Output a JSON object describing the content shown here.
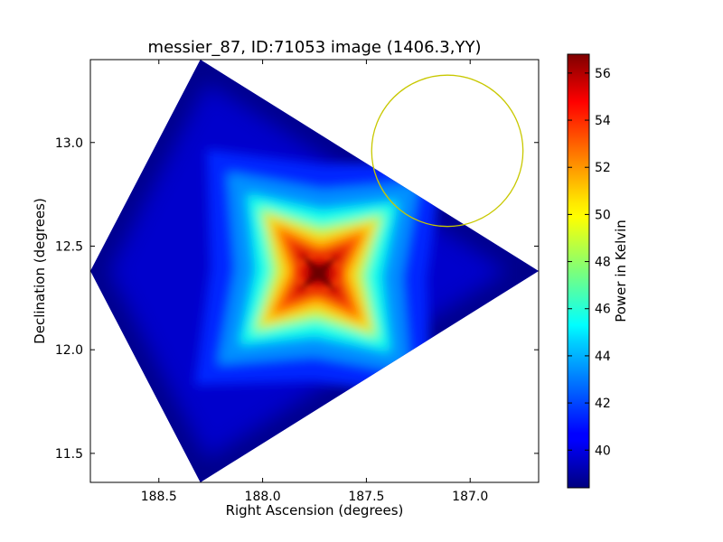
{
  "chart_data": {
    "type": "heatmap",
    "title": "messier_87, ID:71053 image (1406.3,YY)",
    "xlabel": "Right Ascension (degrees)",
    "ylabel": "Declination (degrees)",
    "xlim": [
      188.83,
      186.67
    ],
    "ylim": [
      11.36,
      13.4
    ],
    "x_ticks": [
      188.5,
      188.0,
      187.5,
      187.0
    ],
    "x_tick_labels": [
      "188.5",
      "188.0",
      "187.5",
      "187.0"
    ],
    "y_ticks": [
      11.5,
      12.0,
      12.5,
      13.0
    ],
    "y_tick_labels": [
      "11.5",
      "12.0",
      "12.5",
      "13.0"
    ],
    "colorbar": {
      "label": "Power in Kelvin",
      "min": 38.4,
      "max": 56.8,
      "ticks": [
        40,
        42,
        44,
        46,
        48,
        50,
        52,
        54,
        56
      ],
      "tick_labels": [
        "40",
        "42",
        "44",
        "46",
        "48",
        "50",
        "52",
        "54",
        "56"
      ],
      "colormap": "jet"
    },
    "field_footprint_corners": [
      [
        188.3,
        13.4
      ],
      [
        186.67,
        12.38
      ],
      [
        188.3,
        11.36
      ],
      [
        188.83,
        12.38
      ]
    ],
    "peak": {
      "ra": 187.73,
      "dec": 12.37,
      "value": 56.8
    },
    "background_level": 39,
    "annotation_circle": {
      "center_ra": 187.11,
      "center_dec": 12.96,
      "radius_deg": 0.365,
      "color": "#c8c800"
    }
  }
}
